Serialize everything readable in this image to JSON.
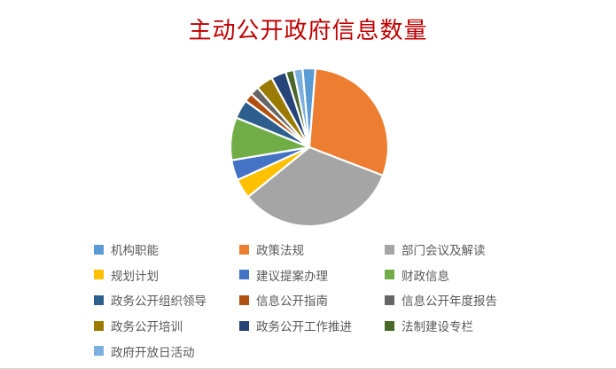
{
  "page": {
    "background": "#FFFFFF"
  },
  "chart": {
    "title": "主动公开政府信息数量",
    "title_color": "#C00000",
    "legend_text_color": "#595959",
    "slice_border_color": "#FFFFFF"
  },
  "chart_data": {
    "type": "pie",
    "title": "主动公开政府信息数量",
    "legend_position": "bottom",
    "grid": false,
    "start_angle_deg": -5,
    "series": [
      {
        "label": "机构职能",
        "color": "#5B9BD5",
        "angle_deg": 9.5,
        "value_pct": 2.6
      },
      {
        "label": "政策法规",
        "color": "#ED7D31",
        "angle_deg": 106.5,
        "value_pct": 29.6
      },
      {
        "label": "部门会议及解读",
        "color": "#A5A5A5",
        "angle_deg": 120.0,
        "value_pct": 33.3
      },
      {
        "label": "规划计划",
        "color": "#FFC000",
        "angle_deg": 14.5,
        "value_pct": 4.0
      },
      {
        "label": "建议提案办理",
        "color": "#4472C4",
        "angle_deg": 15.0,
        "value_pct": 4.2
      },
      {
        "label": "财政信息",
        "color": "#70AD47",
        "angle_deg": 31.5,
        "value_pct": 8.8
      },
      {
        "label": "政务公开组织领导",
        "color": "#2D5F8E",
        "angle_deg": 14.0,
        "value_pct": 3.9
      },
      {
        "label": "信息公开指南",
        "color": "#B05010",
        "angle_deg": 6.5,
        "value_pct": 1.8
      },
      {
        "label": "信息公开年度报告",
        "color": "#666666",
        "angle_deg": 6.5,
        "value_pct": 1.8
      },
      {
        "label": "政务公开培训",
        "color": "#9B7A01",
        "angle_deg": 12.5,
        "value_pct": 3.5
      },
      {
        "label": "政务公开工作推进",
        "color": "#264478",
        "angle_deg": 11.0,
        "value_pct": 3.1
      },
      {
        "label": "法制建设专栏",
        "color": "#4A682A",
        "angle_deg": 6.0,
        "value_pct": 1.7
      },
      {
        "label": "政府开放日活动",
        "color": "#7CAFDD",
        "angle_deg": 6.5,
        "value_pct": 1.8
      }
    ]
  }
}
